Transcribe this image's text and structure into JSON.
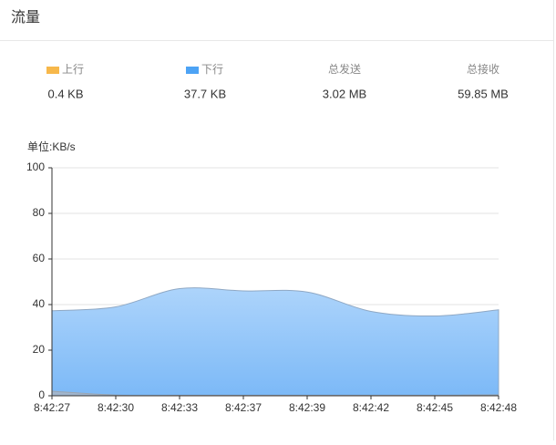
{
  "header": {
    "title": "流量"
  },
  "summary": {
    "upload": "0.4 KB",
    "download": "37.7 KB",
    "total_sent": {
      "label": "总发送",
      "value": "3.02 MB"
    },
    "total_received": {
      "label": "总接收",
      "value": "59.85 MB"
    }
  },
  "chart_data": {
    "type": "area",
    "y_label": "单位:KB/s",
    "categories": [
      "8:42:27",
      "8:42:30",
      "8:42:33",
      "8:42:37",
      "8:42:39",
      "8:42:42",
      "8:42:45",
      "8:42:48"
    ],
    "series": [
      {
        "name": "上行",
        "color": "#f7b84b",
        "area_color": "#a9b4c2",
        "values": [
          2,
          0.3,
          0.2,
          0.2,
          0.2,
          0.2,
          0.2,
          0.4
        ]
      },
      {
        "name": "下行",
        "color": "#4da3f5",
        "area_color": "#8fc3f8",
        "values": [
          37.3,
          39,
          47,
          46,
          45.5,
          37,
          35,
          37.7
        ]
      }
    ],
    "ylim": [
      0,
      100
    ],
    "yticks": [
      0,
      20,
      40,
      60,
      80,
      100
    ],
    "grid": true
  }
}
